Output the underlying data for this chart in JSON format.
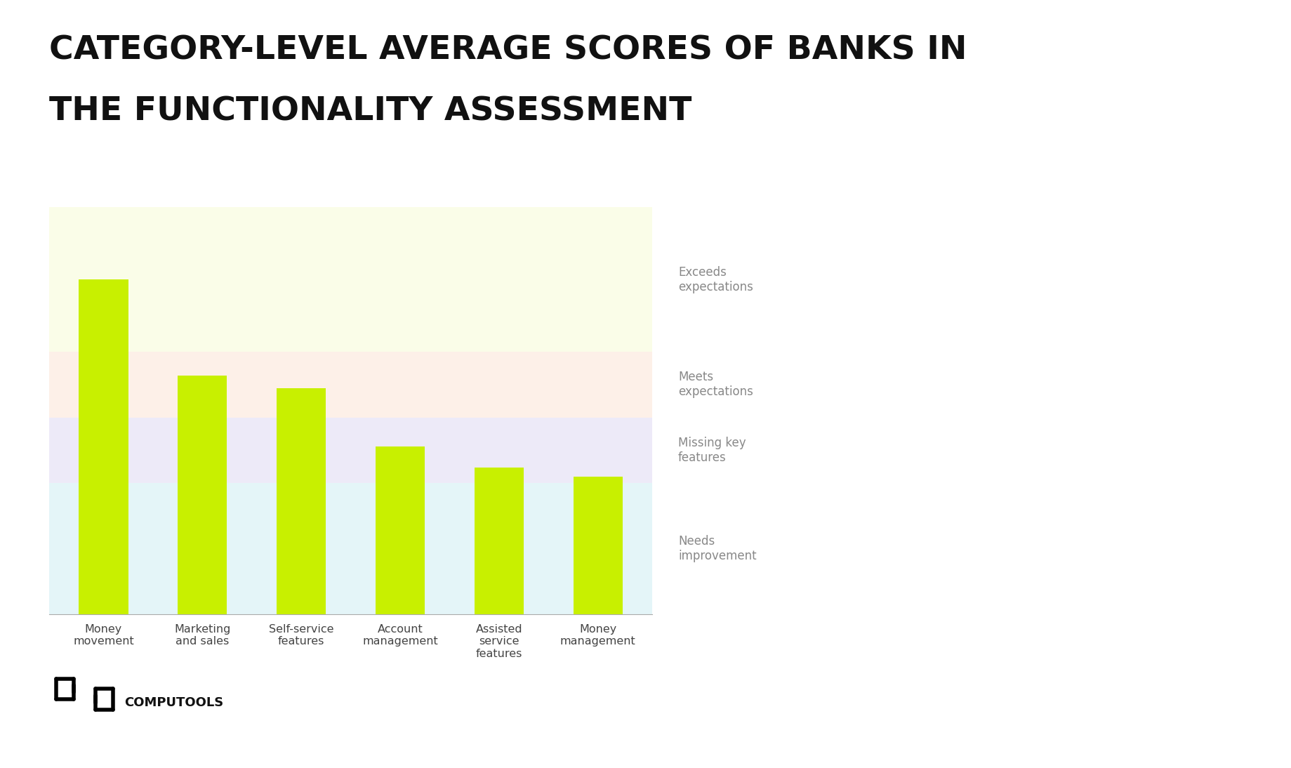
{
  "title_line1": "CATEGORY-LEVEL AVERAGE SCORES OF BANKS IN",
  "title_line2": "THE FUNCTIONALITY ASSESSMENT",
  "categories": [
    "Money\nmovement",
    "Marketing\nand sales",
    "Self-service\nfeatures",
    "Account\nmanagement",
    "Assisted\nservice\nfeatures",
    "Money\nmanagement"
  ],
  "values": [
    3.55,
    2.82,
    2.72,
    2.28,
    2.12,
    2.05
  ],
  "bar_color": "#C8F000",
  "background_color": "#ffffff",
  "band_colors": [
    "#FAFDE8",
    "#FDF0E8",
    "#EDEAF8",
    "#E4F5F8"
  ],
  "band_labels": [
    "Exceeds\nexpectations",
    "Meets\nexpectations",
    "Missing key\nfeatures",
    "Needs\nimprovement"
  ],
  "band_ranges": [
    [
      3.0,
      4.1
    ],
    [
      2.5,
      3.0
    ],
    [
      2.0,
      2.5
    ],
    [
      1.0,
      2.0
    ]
  ],
  "ylim": [
    1.0,
    4.1
  ],
  "title_fontsize": 34,
  "bar_width": 0.5,
  "legend_fontsize": 12,
  "tick_fontsize": 11.5,
  "logo_text": "COMPUTOOLS"
}
